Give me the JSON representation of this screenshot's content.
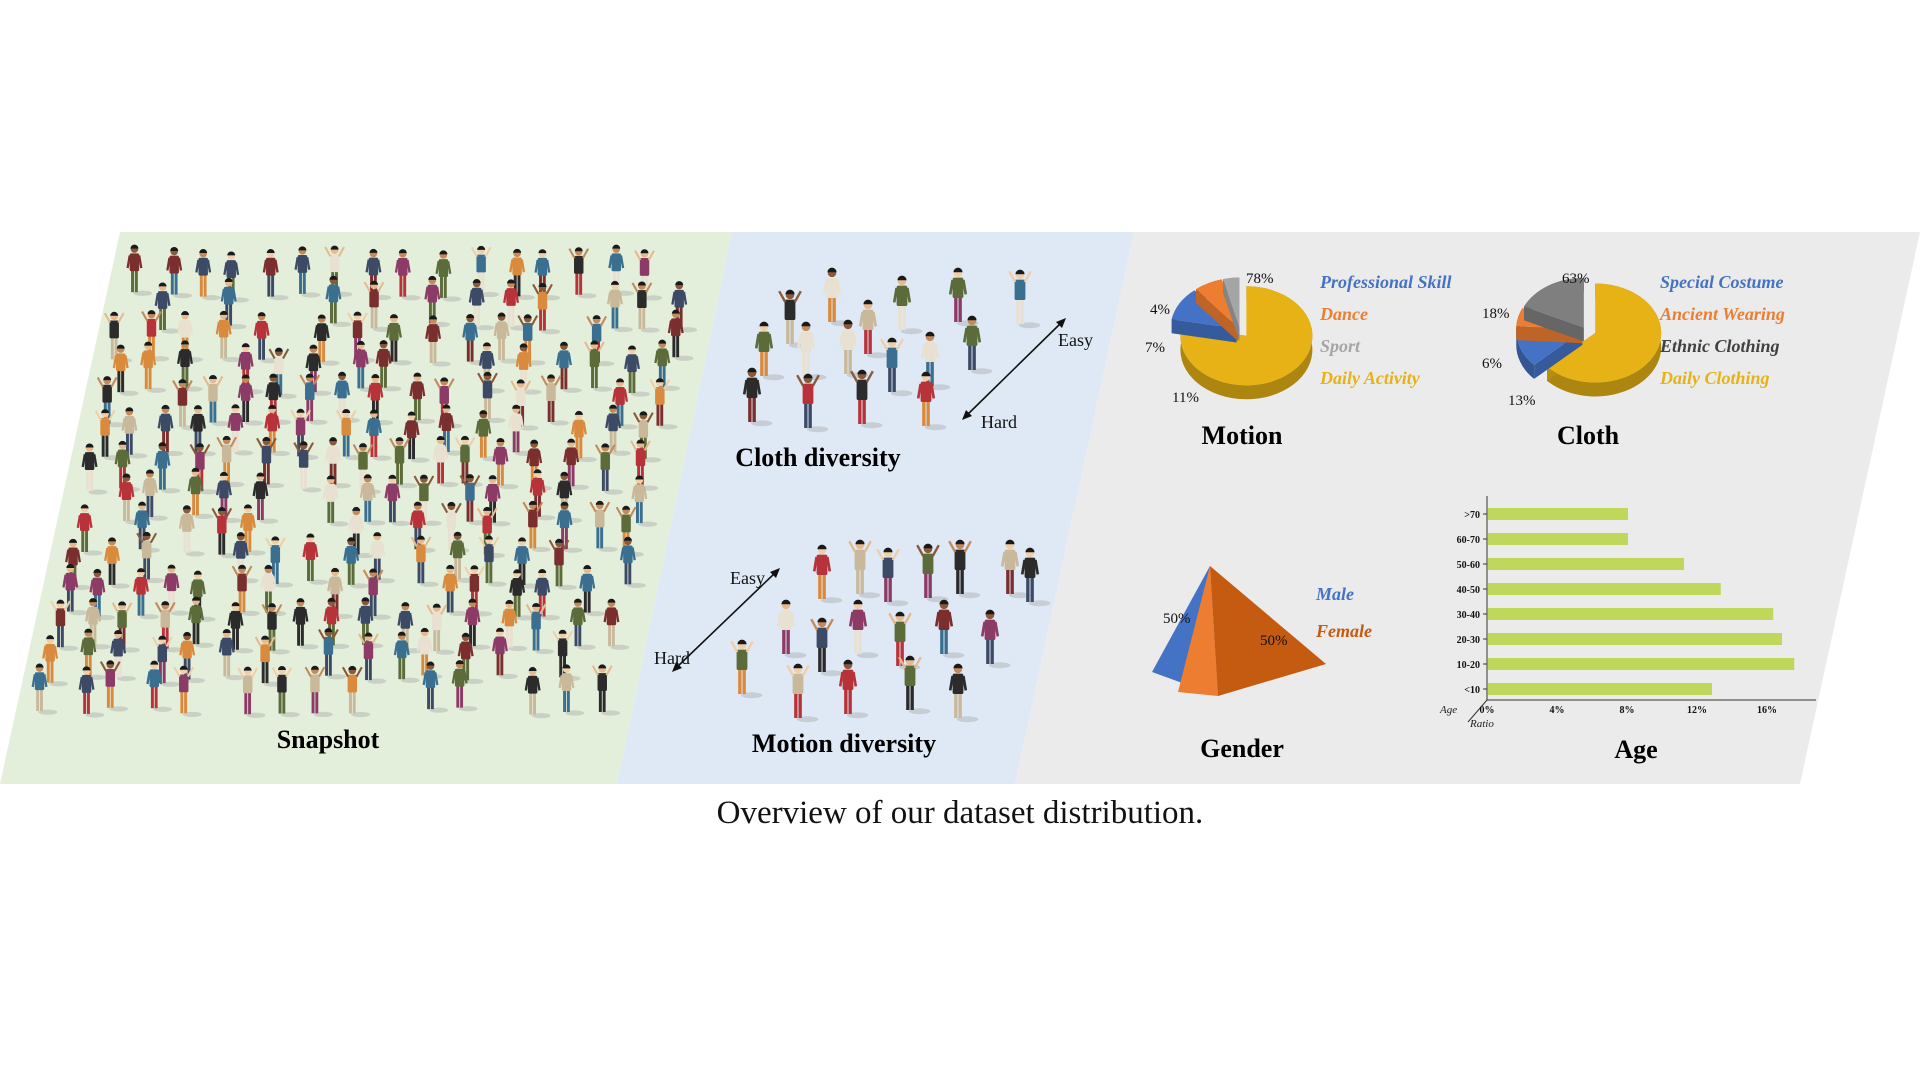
{
  "colors": {
    "snapshot_bg": "#e3efdb",
    "diversity_bg": "#dfe9f5",
    "stats_bg": "#ebebeb",
    "blue": "#4472c4",
    "orange": "#ed7d31",
    "gray": "#a5a5a5",
    "gold": "#e6b215",
    "dark_orange": "#c55a11",
    "bar_green": "#bfd85c",
    "people": [
      "#2b2b2b",
      "#3d4a66",
      "#7a2e2e",
      "#c9b99a",
      "#5b6b3a",
      "#d98a3d",
      "#8c3b66",
      "#3a6f8f",
      "#e8e0d0",
      "#b8323a"
    ]
  },
  "sections": {
    "snapshot": "Snapshot",
    "cloth_diversity": "Cloth diversity",
    "motion_diversity": "Motion diversity",
    "easy": "Easy",
    "hard": "Hard"
  },
  "caption": "Overview of our dataset distribution.",
  "chart_data": [
    {
      "type": "pie",
      "title": "Motion",
      "slices": [
        {
          "label": "Professional Skill",
          "value": 11,
          "text": "11%",
          "color": "#4472c4"
        },
        {
          "label": "Dance",
          "value": 7,
          "text": "7%",
          "color": "#ed7d31"
        },
        {
          "label": "Sport",
          "value": 4,
          "text": "4%",
          "color": "#a5a5a5"
        },
        {
          "label": "Daily Activity",
          "value": 78,
          "text": "78%",
          "color": "#e6b215"
        }
      ]
    },
    {
      "type": "pie",
      "title": "Cloth",
      "slices": [
        {
          "label": "Special Costume",
          "value": 13,
          "text": "13%",
          "color": "#4472c4"
        },
        {
          "label": "Ancient Wearing",
          "value": 6,
          "text": "6%",
          "color": "#ed7d31"
        },
        {
          "label": "Ethnic Clothing",
          "value": 18,
          "text": "18%",
          "color": "#7f7f7f"
        },
        {
          "label": "Daily Clothing",
          "value": 63,
          "text": "63%",
          "color": "#e6b215"
        }
      ]
    },
    {
      "type": "pie",
      "title": "Gender",
      "slices": [
        {
          "label": "Male",
          "value": 50,
          "text": "50%",
          "color": "#4472c4"
        },
        {
          "label": "Female",
          "value": 50,
          "text": "50%",
          "color": "#c55a11"
        }
      ]
    },
    {
      "type": "bar",
      "orientation": "horizontal",
      "title": "Age",
      "xlabel": "Ratio",
      "ylabel": "Age",
      "categories": [
        ">70",
        "60-70",
        "50-60",
        "40-50",
        "30-40",
        "20-30",
        "10-20",
        "<10"
      ],
      "values": [
        8,
        8,
        11.2,
        13.3,
        16.3,
        16.8,
        17.5,
        12.8
      ],
      "xticks": [
        "0%",
        "4%",
        "8%",
        "12%",
        "16%"
      ],
      "xlim": [
        0,
        18
      ],
      "color": "#bfd85c"
    }
  ]
}
